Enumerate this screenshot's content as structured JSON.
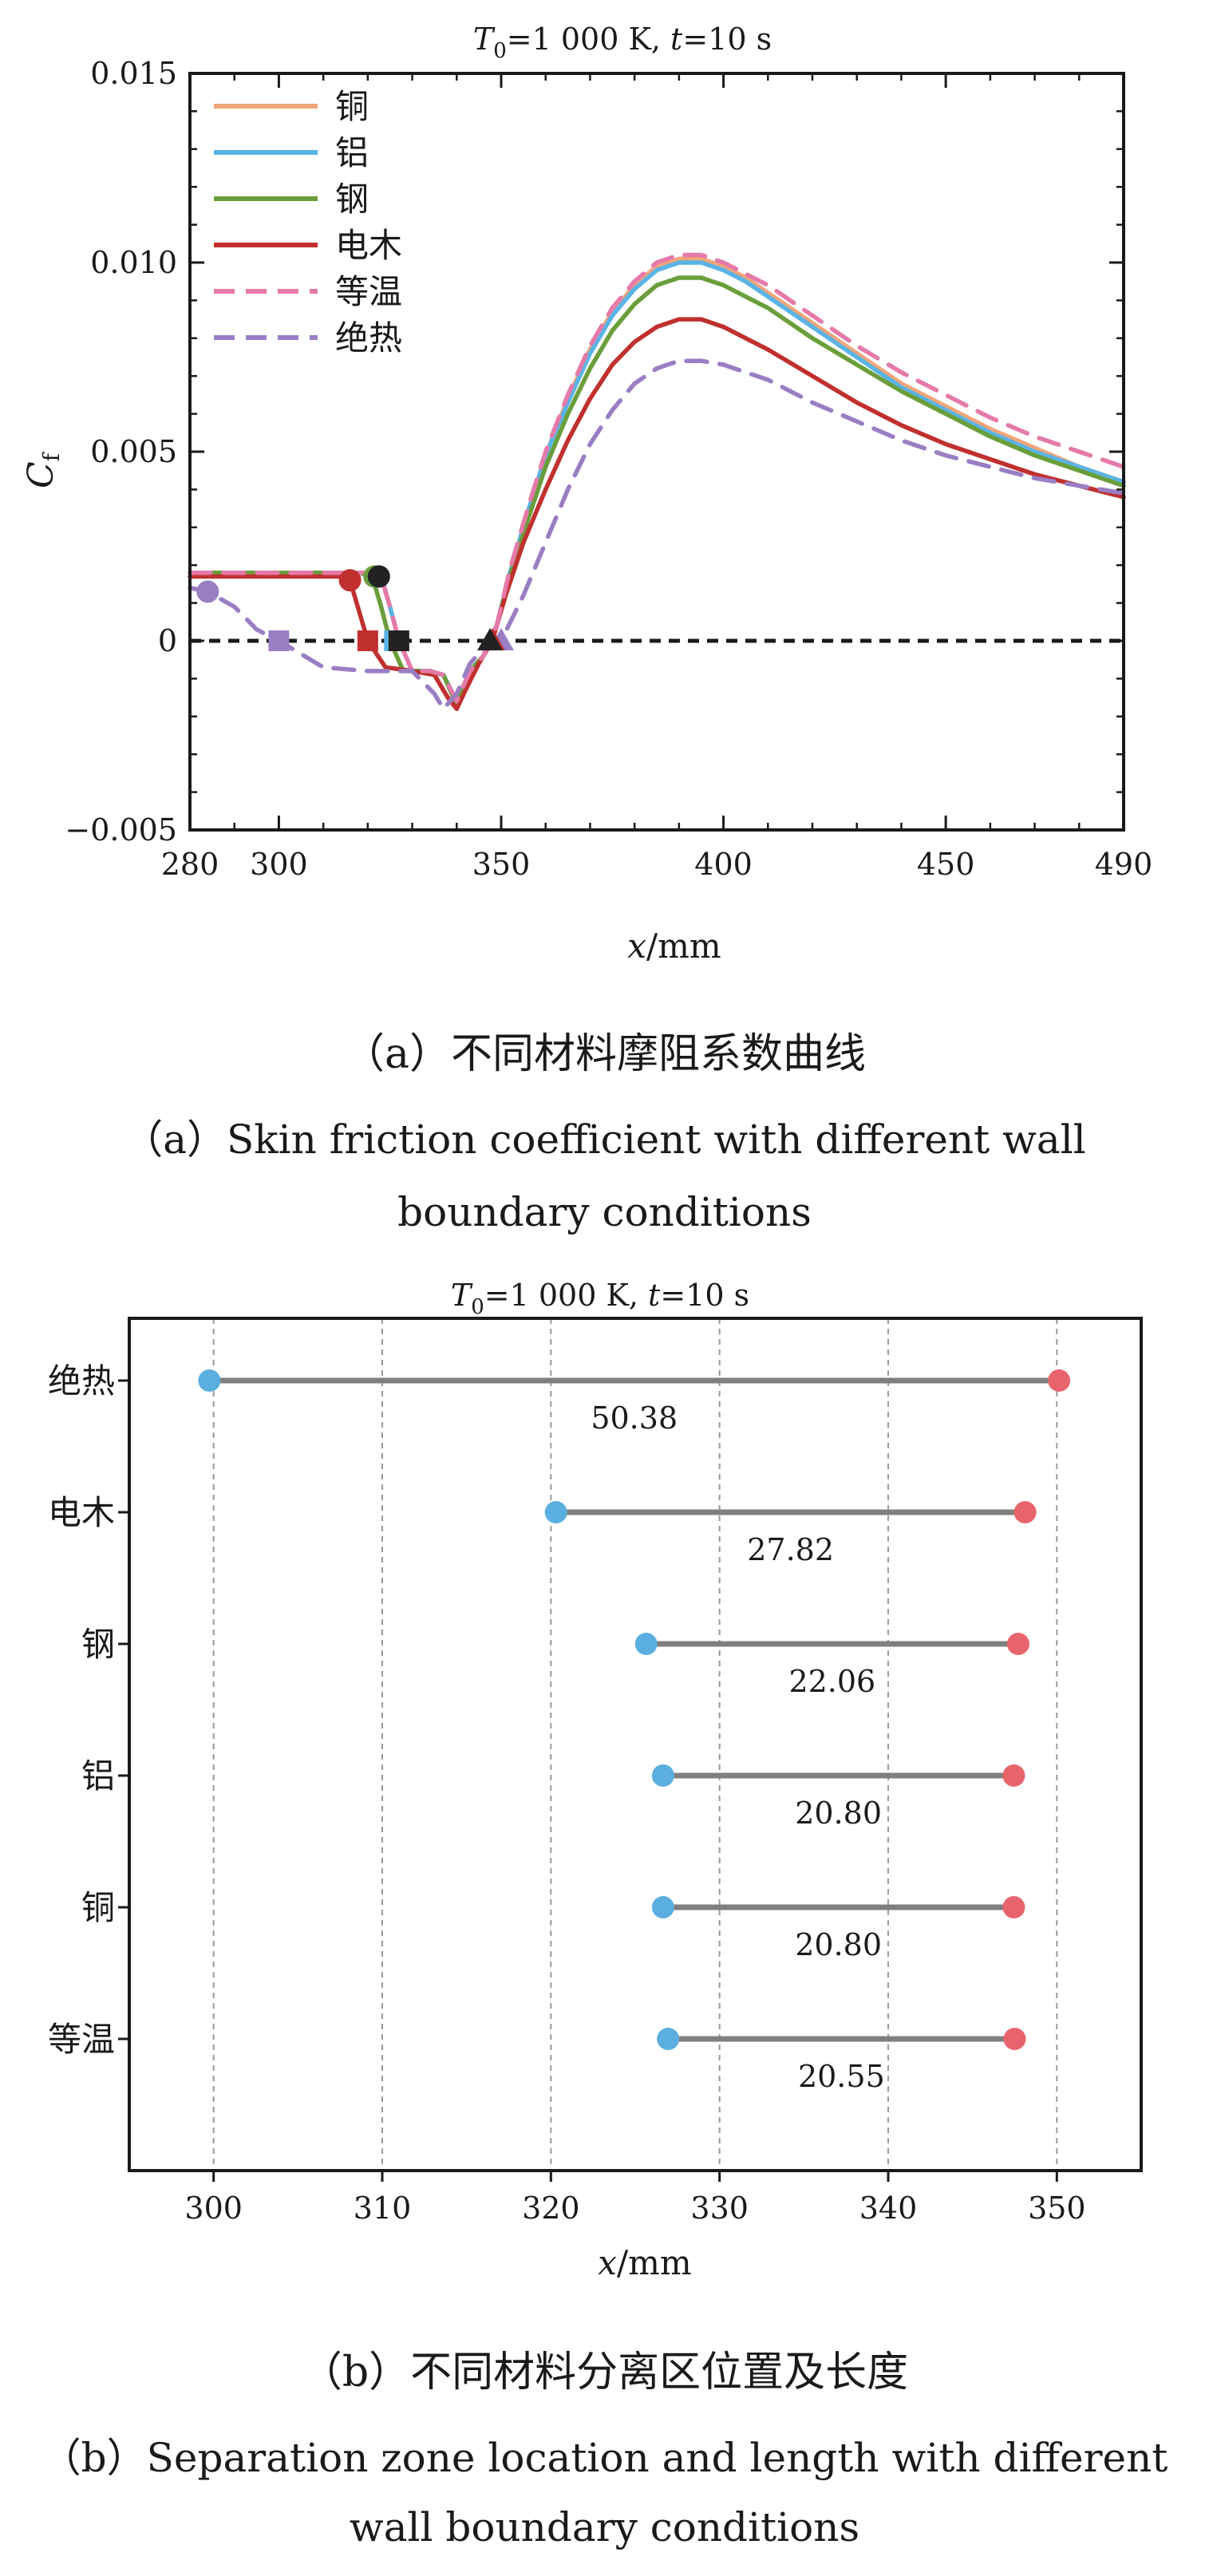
{
  "panel_a": {
    "caption_cn": "（a）不同材料摩阻系数曲线",
    "caption_en_line1": "（a）Skin friction coefficient with different wall",
    "caption_en_line2": "boundary conditions"
  },
  "panel_b": {
    "caption_cn": "（b）不同材料分离区位置及长度",
    "caption_en_line1": "（b）Separation zone location and length with different",
    "caption_en_line2": "wall boundary conditions"
  },
  "chart_data": [
    {
      "type": "line",
      "title": "T0=1 000 K, t=10 s",
      "title_var1": "T",
      "title_sub": "0",
      "title_val1": "=1 000 K, ",
      "title_var2": "t",
      "title_val2": "=10 s",
      "xlabel_var": "x",
      "xlabel_unit": "/mm",
      "ylabel_var": "C",
      "ylabel_sub": "f",
      "xlim": [
        280,
        490
      ],
      "ylim": [
        -0.005,
        0.015
      ],
      "xticks": [
        280,
        300,
        350,
        400,
        450,
        490
      ],
      "xtick_labels": [
        "280",
        "300",
        "350",
        "400",
        "450",
        "490"
      ],
      "yticks": [
        -0.005,
        0,
        0.005,
        0.01,
        0.015
      ],
      "ytick_labels": [
        "−0.005",
        "0",
        "0.005",
        "0.010",
        "0.015"
      ],
      "legend_position": "top-left",
      "series": [
        {
          "name": "铜",
          "color": "#f0a57a",
          "dash": "solid",
          "x": [
            280,
            300,
            320,
            323,
            325,
            327,
            330,
            334,
            337,
            340,
            343,
            346,
            349,
            352,
            356,
            360,
            365,
            370,
            375,
            380,
            385,
            390,
            395,
            400,
            405,
            410,
            420,
            430,
            440,
            450,
            460,
            470,
            480,
            490
          ],
          "y": [
            0.0018,
            0.0018,
            0.0018,
            0.0017,
            0.0009,
            0.0,
            -0.0008,
            -0.0008,
            -0.0009,
            -0.0016,
            -0.0008,
            -0.0004,
            0.0004,
            0.0018,
            0.0034,
            0.0049,
            0.0064,
            0.0077,
            0.0087,
            0.0094,
            0.0099,
            0.0101,
            0.0101,
            0.0099,
            0.0096,
            0.0092,
            0.0084,
            0.0076,
            0.0068,
            0.0062,
            0.0056,
            0.0051,
            0.0046,
            0.0042
          ]
        },
        {
          "name": "铝",
          "color": "#5ab4e5",
          "dash": "solid",
          "x": [
            280,
            300,
            320,
            323,
            325,
            327,
            330,
            334,
            337,
            340,
            343,
            346,
            349,
            352,
            356,
            360,
            365,
            370,
            375,
            380,
            385,
            390,
            395,
            400,
            405,
            410,
            420,
            430,
            440,
            450,
            460,
            470,
            480,
            490
          ],
          "y": [
            0.0018,
            0.0018,
            0.0018,
            0.0017,
            0.0009,
            0.0,
            -0.0008,
            -0.0008,
            -0.0009,
            -0.0016,
            -0.0008,
            -0.0004,
            0.0004,
            0.0018,
            0.0034,
            0.0049,
            0.0063,
            0.0076,
            0.0086,
            0.0093,
            0.0098,
            0.01,
            0.01,
            0.0098,
            0.0095,
            0.0091,
            0.0083,
            0.0075,
            0.0067,
            0.0061,
            0.0055,
            0.005,
            0.0046,
            0.0042
          ]
        },
        {
          "name": "钢",
          "color": "#6a9e3a",
          "dash": "solid",
          "x": [
            280,
            300,
            318,
            321,
            323,
            325,
            328,
            333,
            337,
            340,
            343,
            346,
            349,
            352,
            356,
            360,
            365,
            370,
            375,
            380,
            385,
            390,
            395,
            400,
            405,
            410,
            420,
            430,
            440,
            450,
            460,
            470,
            480,
            490
          ],
          "y": [
            0.0018,
            0.0018,
            0.0018,
            0.0017,
            0.0009,
            0.0,
            -0.0008,
            -0.0008,
            -0.0009,
            -0.0017,
            -0.0008,
            -0.0004,
            0.0004,
            0.0017,
            0.0032,
            0.0046,
            0.006,
            0.0072,
            0.0082,
            0.0089,
            0.0094,
            0.0096,
            0.0096,
            0.0094,
            0.0091,
            0.0088,
            0.008,
            0.0073,
            0.0066,
            0.006,
            0.0054,
            0.0049,
            0.0045,
            0.0041
          ]
        },
        {
          "name": "电木",
          "color": "#c0302e",
          "dash": "solid",
          "x": [
            280,
            300,
            314,
            316,
            318,
            320,
            324,
            330,
            335,
            338,
            340,
            342,
            345,
            348,
            351,
            355,
            360,
            365,
            370,
            375,
            380,
            385,
            390,
            395,
            400,
            405,
            410,
            420,
            430,
            440,
            450,
            460,
            470,
            480,
            490
          ],
          "y": [
            0.0017,
            0.0017,
            0.0017,
            0.0016,
            0.0008,
            0.0,
            -0.0007,
            -0.0008,
            -0.0009,
            -0.0015,
            -0.0018,
            -0.0013,
            -0.0006,
            0.0,
            0.0012,
            0.0026,
            0.004,
            0.0053,
            0.0064,
            0.0073,
            0.0079,
            0.0083,
            0.0085,
            0.0085,
            0.0083,
            0.008,
            0.0077,
            0.007,
            0.0063,
            0.0057,
            0.0052,
            0.0048,
            0.0044,
            0.0041,
            0.0038
          ]
        },
        {
          "name": "等温",
          "color": "#e57aa9",
          "dash": "dashed",
          "x": [
            280,
            300,
            320,
            323,
            325,
            327,
            330,
            334,
            337,
            340,
            343,
            346,
            349,
            352,
            356,
            360,
            365,
            370,
            375,
            380,
            385,
            390,
            395,
            400,
            405,
            410,
            420,
            430,
            440,
            450,
            460,
            470,
            480,
            490
          ],
          "y": [
            0.0018,
            0.0018,
            0.0018,
            0.0017,
            0.0009,
            0.0,
            -0.0008,
            -0.0008,
            -0.0009,
            -0.0016,
            -0.0008,
            -0.0004,
            0.0004,
            0.0019,
            0.0035,
            0.005,
            0.0065,
            0.0078,
            0.0088,
            0.0095,
            0.01,
            0.0102,
            0.0102,
            0.01,
            0.0097,
            0.0094,
            0.0086,
            0.0078,
            0.0071,
            0.0065,
            0.0059,
            0.0054,
            0.005,
            0.0046
          ]
        },
        {
          "name": "绝热",
          "color": "#9a7ec4",
          "dash": "dashed",
          "x": [
            280,
            284,
            290,
            295,
            300,
            310,
            320,
            330,
            335,
            337,
            340,
            343,
            346,
            350,
            355,
            360,
            365,
            370,
            375,
            380,
            385,
            390,
            395,
            400,
            405,
            410,
            420,
            430,
            440,
            450,
            460,
            470,
            480,
            490
          ],
          "y": [
            0.0014,
            0.0013,
            0.0009,
            0.0003,
            0.0,
            -0.0007,
            -0.0008,
            -0.0008,
            -0.0014,
            -0.0018,
            -0.0014,
            -0.0006,
            -0.0002,
            0.0,
            0.0012,
            0.0026,
            0.004,
            0.0052,
            0.0061,
            0.0068,
            0.0072,
            0.0074,
            0.0074,
            0.0073,
            0.0071,
            0.0069,
            0.0063,
            0.0058,
            0.0053,
            0.0049,
            0.0046,
            0.0043,
            0.0041,
            0.0039
          ]
        }
      ],
      "markers": [
        {
          "shape": "circle",
          "series": "绝热",
          "x": 284,
          "y": 0.0013,
          "color": "#9a7ec4"
        },
        {
          "shape": "square",
          "series": "绝热",
          "x": 300,
          "y": 0.0,
          "color": "#9a7ec4"
        },
        {
          "shape": "triangle",
          "series": "绝热",
          "x": 350,
          "y": 0.0,
          "color": "#9a7ec4"
        },
        {
          "shape": "circle",
          "series": "电木",
          "x": 316,
          "y": 0.0016,
          "color": "#c0302e"
        },
        {
          "shape": "square",
          "series": "电木",
          "x": 320,
          "y": 0.0,
          "color": "#c0302e"
        },
        {
          "shape": "circle",
          "series": "钢",
          "x": 321.5,
          "y": 0.0017,
          "color": "#6a9e3a"
        },
        {
          "shape": "circle",
          "series": "铝",
          "x": 322.5,
          "y": 0.0017,
          "color": "#5ab4e5"
        },
        {
          "shape": "circle",
          "series": "铜",
          "x": 322.5,
          "y": 0.0017,
          "color": "#222222"
        },
        {
          "shape": "square",
          "series": "钢",
          "x": 326,
          "y": 0.0,
          "color": "#5ab4e5"
        },
        {
          "shape": "square",
          "series": "铜",
          "x": 327,
          "y": 0.0,
          "color": "#222222"
        },
        {
          "shape": "triangle",
          "series": "电木",
          "x": 348,
          "y": 0.0,
          "color": "#c0302e"
        },
        {
          "shape": "triangle",
          "series": "铜",
          "x": 347.5,
          "y": 0.0,
          "color": "#222222"
        }
      ]
    },
    {
      "type": "dumbbell",
      "title": "T0=1 000 K, t=10 s",
      "title_var1": "T",
      "title_sub": "0",
      "title_val1": "=1 000 K, ",
      "title_var2": "t",
      "title_val2": "=10 s",
      "xlabel_var": "x",
      "xlabel_unit": "/mm",
      "xlim": [
        295,
        355
      ],
      "xticks": [
        300,
        310,
        320,
        330,
        340,
        350
      ],
      "xtick_labels": [
        "300",
        "310",
        "320",
        "330",
        "340",
        "350"
      ],
      "categories": [
        "绝热",
        "电木",
        "钢",
        "铝",
        "铜",
        "等温"
      ],
      "start": [
        299.75,
        320.3,
        325.65,
        326.65,
        326.65,
        326.95
      ],
      "end": [
        350.13,
        348.12,
        347.71,
        347.45,
        347.45,
        347.5
      ],
      "lengths": [
        "50.38",
        "27.82",
        "22.06",
        "20.80",
        "20.80",
        "20.55"
      ],
      "start_color": "#5aaee0",
      "end_color": "#e8646c",
      "line_color": "#7f7f7f"
    }
  ]
}
